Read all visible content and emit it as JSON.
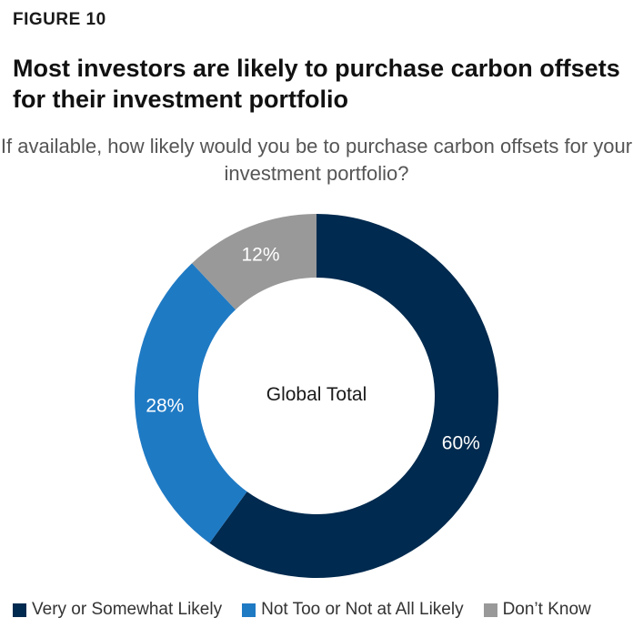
{
  "figure_label": "FIGURE 10",
  "headline": "Most investors are likely to purchase carbon offsets for their investment portfolio",
  "question": "If available, how likely would you be to purchase carbon offsets for your investment portfolio?",
  "chart_data": {
    "type": "pie",
    "variant": "donut",
    "center_label": "Global Total",
    "categories": [
      "Very or Somewhat Likely",
      "Not Too or Not at All Likely",
      "Don’t Know"
    ],
    "values": [
      60,
      28,
      12
    ],
    "value_labels": [
      "60%",
      "28%",
      "12%"
    ],
    "colors": [
      "#002a4f",
      "#1f7ac4",
      "#999999"
    ],
    "start": "12 o'clock",
    "direction": "clockwise",
    "legend_position": "bottom"
  }
}
